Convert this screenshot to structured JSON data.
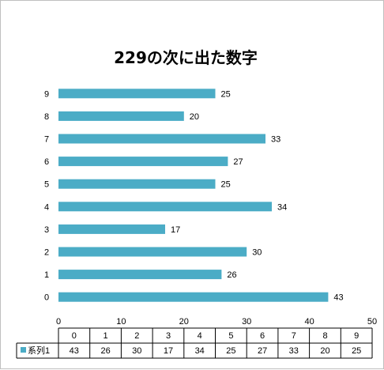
{
  "chart_data": {
    "type": "bar",
    "orientation": "horizontal",
    "title": "229の次に出た数字",
    "categories": [
      "0",
      "1",
      "2",
      "3",
      "4",
      "5",
      "6",
      "7",
      "8",
      "9"
    ],
    "series": [
      {
        "name": "系列1",
        "values": [
          43,
          26,
          30,
          17,
          34,
          25,
          27,
          33,
          20,
          25
        ],
        "color": "#4bacc6"
      }
    ],
    "xlim": [
      0,
      50
    ],
    "x_ticks": [
      0,
      10,
      20,
      30,
      40,
      50
    ],
    "data_labels": true,
    "grid": false,
    "legend": "data-table",
    "data_table": true
  }
}
